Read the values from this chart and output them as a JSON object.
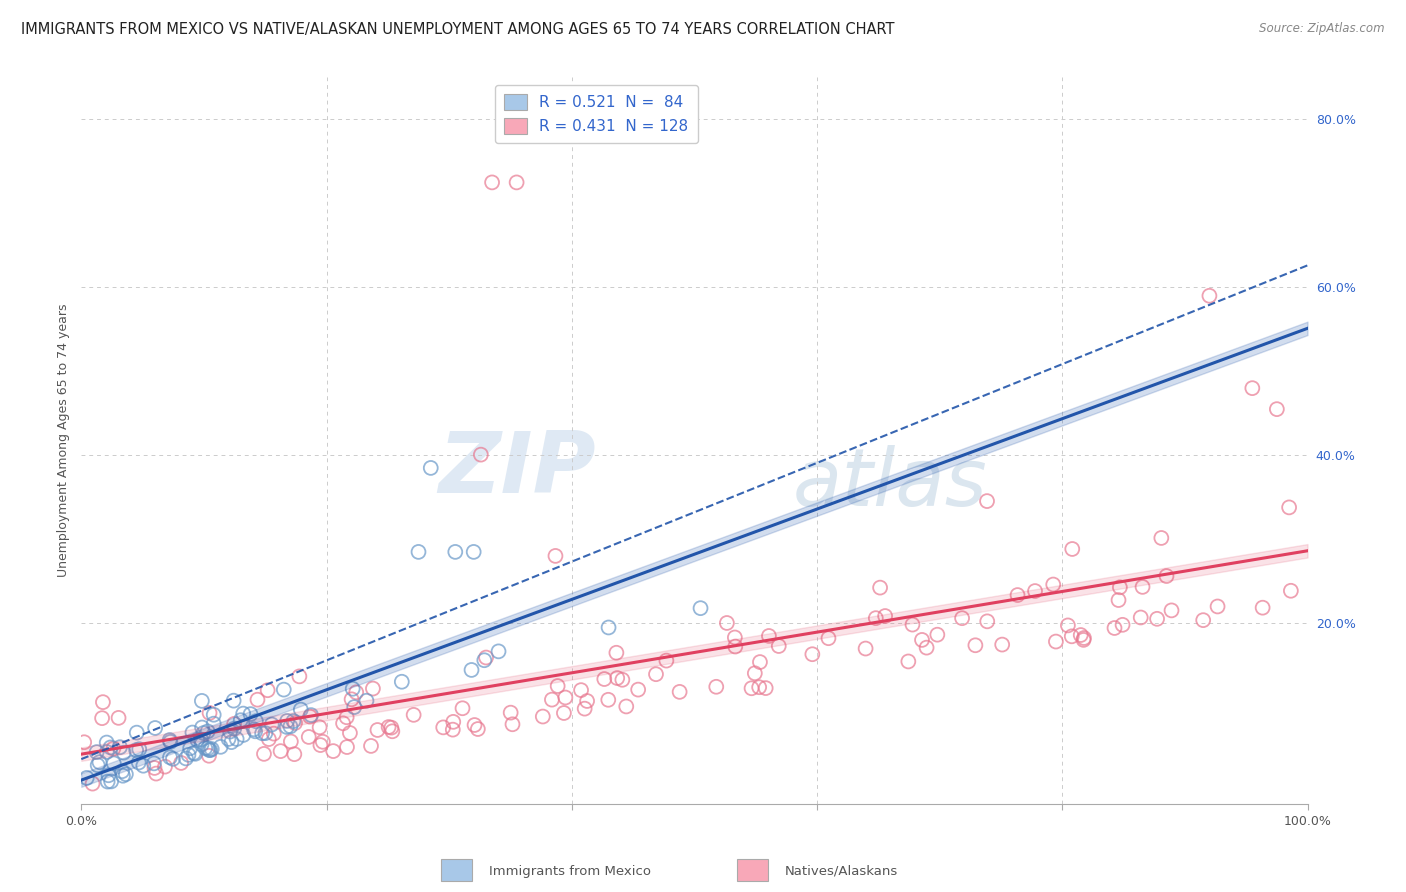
{
  "title": "IMMIGRANTS FROM MEXICO VS NATIVE/ALASKAN UNEMPLOYMENT AMONG AGES 65 TO 74 YEARS CORRELATION CHART",
  "source": "Source: ZipAtlas.com",
  "ylabel": "Unemployment Among Ages 65 to 74 years",
  "xlim": [
    0,
    1.0
  ],
  "ylim": [
    0,
    0.85
  ],
  "ytick_positions_right": [
    0.8,
    0.6,
    0.4,
    0.2
  ],
  "watermark_zip": "ZIP",
  "watermark_atlas": "atlas",
  "legend_line1": "R = 0.521  N =  84",
  "legend_line2": "R = 0.431  N = 128",
  "blue_color": "#A8C8E8",
  "blue_edge_color": "#6898C8",
  "pink_color": "#F8A8B8",
  "pink_edge_color": "#E87890",
  "blue_line_color": "#2255AA",
  "pink_line_color": "#E04060",
  "blue_legend_color": "#A8C8E8",
  "pink_legend_color": "#F8A8B8",
  "background_color": "#ffffff",
  "grid_color": "#cccccc",
  "title_fontsize": 10.5,
  "axis_label_fontsize": 9,
  "tick_fontsize": 9,
  "legend_fontsize": 11,
  "right_tick_color": "#3366CC"
}
